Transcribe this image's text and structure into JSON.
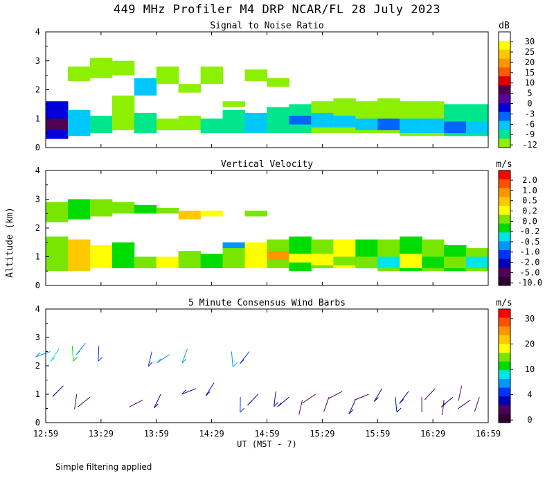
{
  "title": "449 MHz Profiler M4 DRP NCAR/FL 28 July 2023",
  "footnote": "Simple filtering applied",
  "chart_data": [
    {
      "id": "snr",
      "type": "heatmap",
      "title": "Signal to Noise Ratio",
      "ylabel": "Altitude (km)",
      "ylim": [
        0,
        4
      ],
      "y_ticks": [
        "0",
        "1",
        "2",
        "3",
        "4"
      ],
      "colorbar_unit": "dB",
      "colorbar_labels": [
        "30",
        "25",
        "20",
        "15",
        "10",
        "5",
        "0",
        "-3",
        "-6",
        "-9",
        "-12"
      ],
      "colorbar_colors": [
        "#ffffff",
        "#ffff00",
        "#ffc800",
        "#ff9600",
        "#ff5a00",
        "#dc0000",
        "#500050",
        "#5a0096",
        "#0000dc",
        "#0064ff",
        "#00c8ff",
        "#00e68c",
        "#8cf000"
      ],
      "cells": [
        {
          "t": 0.0,
          "y0": 0.3,
          "y1": 1.6,
          "c": 8
        },
        {
          "t": 0.0,
          "y0": 0.6,
          "y1": 1.0,
          "c": 6
        },
        {
          "t": 0.05,
          "y0": 0.4,
          "y1": 1.3,
          "c": 10
        },
        {
          "t": 0.05,
          "y0": 2.3,
          "y1": 2.8,
          "c": 12
        },
        {
          "t": 0.1,
          "y0": 0.5,
          "y1": 1.1,
          "c": 11
        },
        {
          "t": 0.1,
          "y0": 2.4,
          "y1": 3.1,
          "c": 12
        },
        {
          "t": 0.15,
          "y0": 0.6,
          "y1": 1.8,
          "c": 12
        },
        {
          "t": 0.15,
          "y0": 2.5,
          "y1": 3.0,
          "c": 12
        },
        {
          "t": 0.2,
          "y0": 0.5,
          "y1": 1.2,
          "c": 11
        },
        {
          "t": 0.2,
          "y0": 1.8,
          "y1": 2.4,
          "c": 10
        },
        {
          "t": 0.25,
          "y0": 0.6,
          "y1": 1.0,
          "c": 12
        },
        {
          "t": 0.25,
          "y0": 2.2,
          "y1": 2.8,
          "c": 12
        },
        {
          "t": 0.3,
          "y0": 0.6,
          "y1": 1.1,
          "c": 12
        },
        {
          "t": 0.3,
          "y0": 1.9,
          "y1": 2.2,
          "c": 12
        },
        {
          "t": 0.35,
          "y0": 0.5,
          "y1": 1.0,
          "c": 11
        },
        {
          "t": 0.35,
          "y0": 2.2,
          "y1": 2.8,
          "c": 12
        },
        {
          "t": 0.4,
          "y0": 0.5,
          "y1": 1.3,
          "c": 11
        },
        {
          "t": 0.4,
          "y0": 1.4,
          "y1": 1.6,
          "c": 12
        },
        {
          "t": 0.45,
          "y0": 0.5,
          "y1": 1.2,
          "c": 10
        },
        {
          "t": 0.45,
          "y0": 2.3,
          "y1": 2.7,
          "c": 12
        },
        {
          "t": 0.5,
          "y0": 0.5,
          "y1": 1.4,
          "c": 11
        },
        {
          "t": 0.5,
          "y0": 2.1,
          "y1": 2.4,
          "c": 12
        },
        {
          "t": 0.55,
          "y0": 0.5,
          "y1": 1.5,
          "c": 11
        },
        {
          "t": 0.55,
          "y0": 0.8,
          "y1": 1.1,
          "c": 9
        },
        {
          "t": 0.6,
          "y0": 0.5,
          "y1": 1.6,
          "c": 12
        },
        {
          "t": 0.6,
          "y0": 0.7,
          "y1": 1.2,
          "c": 10
        },
        {
          "t": 0.65,
          "y0": 0.5,
          "y1": 1.7,
          "c": 12
        },
        {
          "t": 0.65,
          "y0": 0.7,
          "y1": 1.1,
          "c": 10
        },
        {
          "t": 0.7,
          "y0": 0.5,
          "y1": 1.6,
          "c": 12
        },
        {
          "t": 0.7,
          "y0": 0.6,
          "y1": 1.0,
          "c": 10
        },
        {
          "t": 0.75,
          "y0": 0.5,
          "y1": 1.7,
          "c": 12
        },
        {
          "t": 0.75,
          "y0": 0.6,
          "y1": 1.0,
          "c": 9
        },
        {
          "t": 0.8,
          "y0": 0.4,
          "y1": 1.6,
          "c": 12
        },
        {
          "t": 0.8,
          "y0": 0.5,
          "y1": 1.0,
          "c": 10
        },
        {
          "t": 0.85,
          "y0": 0.4,
          "y1": 1.6,
          "c": 12
        },
        {
          "t": 0.85,
          "y0": 0.5,
          "y1": 1.0,
          "c": 10
        },
        {
          "t": 0.9,
          "y0": 0.4,
          "y1": 1.5,
          "c": 11
        },
        {
          "t": 0.9,
          "y0": 0.5,
          "y1": 0.9,
          "c": 9
        },
        {
          "t": 0.95,
          "y0": 0.4,
          "y1": 1.5,
          "c": 11
        },
        {
          "t": 0.95,
          "y0": 0.5,
          "y1": 0.9,
          "c": 10
        }
      ]
    },
    {
      "id": "vv",
      "type": "heatmap",
      "title": "Vertical Velocity",
      "ylabel": "Altitude (km)",
      "ylim": [
        0,
        4
      ],
      "y_ticks": [
        "0",
        "1",
        "2",
        "3",
        "4"
      ],
      "colorbar_unit": "m/s",
      "colorbar_labels": [
        "2.0",
        "1.0",
        "0.5",
        "0.2",
        "0.0",
        "-0.2",
        "-0.5",
        "-1.0",
        "-2.0",
        "-5.0",
        "-10.0"
      ],
      "colorbar_colors": [
        "#ff0000",
        "#ff5000",
        "#ff9600",
        "#ffc800",
        "#ffff00",
        "#78e600",
        "#00dc00",
        "#00e6e6",
        "#0096ff",
        "#0032ff",
        "#0000b4",
        "#50005a",
        "#300030"
      ],
      "cells": [
        {
          "t": 0.0,
          "y0": 0.5,
          "y1": 1.7,
          "c": 5
        },
        {
          "t": 0.0,
          "y0": 2.2,
          "y1": 2.9,
          "c": 5
        },
        {
          "t": 0.05,
          "y0": 0.5,
          "y1": 1.6,
          "c": 3
        },
        {
          "t": 0.05,
          "y0": 2.3,
          "y1": 3.0,
          "c": 6
        },
        {
          "t": 0.1,
          "y0": 0.6,
          "y1": 1.4,
          "c": 4
        },
        {
          "t": 0.1,
          "y0": 2.4,
          "y1": 3.0,
          "c": 5
        },
        {
          "t": 0.15,
          "y0": 0.6,
          "y1": 1.5,
          "c": 6
        },
        {
          "t": 0.15,
          "y0": 2.5,
          "y1": 2.9,
          "c": 5
        },
        {
          "t": 0.2,
          "y0": 0.6,
          "y1": 1.0,
          "c": 5
        },
        {
          "t": 0.2,
          "y0": 2.5,
          "y1": 2.8,
          "c": 6
        },
        {
          "t": 0.25,
          "y0": 0.6,
          "y1": 1.0,
          "c": 4
        },
        {
          "t": 0.25,
          "y0": 2.5,
          "y1": 2.7,
          "c": 5
        },
        {
          "t": 0.3,
          "y0": 0.6,
          "y1": 1.2,
          "c": 5
        },
        {
          "t": 0.3,
          "y0": 2.3,
          "y1": 2.6,
          "c": 3
        },
        {
          "t": 0.35,
          "y0": 0.6,
          "y1": 1.1,
          "c": 6
        },
        {
          "t": 0.35,
          "y0": 2.4,
          "y1": 2.6,
          "c": 4
        },
        {
          "t": 0.4,
          "y0": 0.6,
          "y1": 1.4,
          "c": 5
        },
        {
          "t": 0.4,
          "y0": 1.3,
          "y1": 1.5,
          "c": 8
        },
        {
          "t": 0.45,
          "y0": 0.6,
          "y1": 1.5,
          "c": 4
        },
        {
          "t": 0.45,
          "y0": 2.4,
          "y1": 2.6,
          "c": 5
        },
        {
          "t": 0.5,
          "y0": 0.6,
          "y1": 1.6,
          "c": 5
        },
        {
          "t": 0.5,
          "y0": 0.9,
          "y1": 1.2,
          "c": 2
        },
        {
          "t": 0.55,
          "y0": 0.5,
          "y1": 1.7,
          "c": 6
        },
        {
          "t": 0.55,
          "y0": 0.8,
          "y1": 1.1,
          "c": 4
        },
        {
          "t": 0.6,
          "y0": 0.6,
          "y1": 1.6,
          "c": 5
        },
        {
          "t": 0.6,
          "y0": 0.7,
          "y1": 1.1,
          "c": 4
        },
        {
          "t": 0.65,
          "y0": 0.6,
          "y1": 1.6,
          "c": 4
        },
        {
          "t": 0.65,
          "y0": 0.7,
          "y1": 1.0,
          "c": 5
        },
        {
          "t": 0.7,
          "y0": 0.6,
          "y1": 1.6,
          "c": 6
        },
        {
          "t": 0.7,
          "y0": 0.6,
          "y1": 1.0,
          "c": 5
        },
        {
          "t": 0.75,
          "y0": 0.5,
          "y1": 1.6,
          "c": 5
        },
        {
          "t": 0.75,
          "y0": 0.6,
          "y1": 1.0,
          "c": 7
        },
        {
          "t": 0.8,
          "y0": 0.5,
          "y1": 1.7,
          "c": 6
        },
        {
          "t": 0.8,
          "y0": 0.6,
          "y1": 1.1,
          "c": 4
        },
        {
          "t": 0.85,
          "y0": 0.5,
          "y1": 1.6,
          "c": 5
        },
        {
          "t": 0.85,
          "y0": 0.6,
          "y1": 1.0,
          "c": 6
        },
        {
          "t": 0.9,
          "y0": 0.5,
          "y1": 1.4,
          "c": 6
        },
        {
          "t": 0.9,
          "y0": 0.6,
          "y1": 1.0,
          "c": 5
        },
        {
          "t": 0.95,
          "y0": 0.5,
          "y1": 1.3,
          "c": 5
        },
        {
          "t": 0.95,
          "y0": 0.6,
          "y1": 1.0,
          "c": 7
        }
      ]
    },
    {
      "id": "wind",
      "type": "scatter",
      "title": "5 Minute Consensus Wind Barbs",
      "ylabel": "Altitude (km)",
      "ylim": [
        0,
        4
      ],
      "y_ticks": [
        "0",
        "1",
        "2",
        "3",
        "4"
      ],
      "colorbar_unit": "m/s",
      "colorbar_labels": [
        "30",
        "20",
        "10",
        "4",
        "0"
      ],
      "colorbar_colors": [
        "#ff0000",
        "#ff5000",
        "#ff9600",
        "#ffc800",
        "#ffff00",
        "#78e600",
        "#00dc00",
        "#00e6e6",
        "#0096ff",
        "#0032ff",
        "#0000b4",
        "#50005a",
        "#300030"
      ],
      "barbs": [
        {
          "t": 0.01,
          "alt": 2.5,
          "speed": 10
        },
        {
          "t": 0.03,
          "alt": 2.6,
          "speed": 12
        },
        {
          "t": 0.06,
          "alt": 2.7,
          "speed": 14
        },
        {
          "t": 0.09,
          "alt": 2.8,
          "speed": 10
        },
        {
          "t": 0.12,
          "alt": 2.7,
          "speed": 8
        },
        {
          "t": 0.04,
          "alt": 1.3,
          "speed": 6
        },
        {
          "t": 0.07,
          "alt": 1.0,
          "speed": 3
        },
        {
          "t": 0.1,
          "alt": 0.9,
          "speed": 2
        },
        {
          "t": 0.24,
          "alt": 2.5,
          "speed": 8
        },
        {
          "t": 0.28,
          "alt": 2.4,
          "speed": 11
        },
        {
          "t": 0.32,
          "alt": 2.6,
          "speed": 9
        },
        {
          "t": 0.22,
          "alt": 0.8,
          "speed": 3
        },
        {
          "t": 0.26,
          "alt": 1.0,
          "speed": 4
        },
        {
          "t": 0.34,
          "alt": 1.2,
          "speed": 6
        },
        {
          "t": 0.38,
          "alt": 1.4,
          "speed": 5
        },
        {
          "t": 0.42,
          "alt": 2.5,
          "speed": 9
        },
        {
          "t": 0.46,
          "alt": 2.5,
          "speed": 8
        },
        {
          "t": 0.44,
          "alt": 0.9,
          "speed": 8
        },
        {
          "t": 0.48,
          "alt": 1.0,
          "speed": 5
        },
        {
          "t": 0.52,
          "alt": 1.1,
          "speed": 6
        },
        {
          "t": 0.55,
          "alt": 0.9,
          "speed": 4
        },
        {
          "t": 0.58,
          "alt": 0.8,
          "speed": 2
        },
        {
          "t": 0.61,
          "alt": 1.0,
          "speed": 2
        },
        {
          "t": 0.64,
          "alt": 0.9,
          "speed": 3
        },
        {
          "t": 0.67,
          "alt": 1.1,
          "speed": 2
        },
        {
          "t": 0.7,
          "alt": 0.8,
          "speed": 4
        },
        {
          "t": 0.73,
          "alt": 1.0,
          "speed": 3
        },
        {
          "t": 0.76,
          "alt": 1.2,
          "speed": 5
        },
        {
          "t": 0.79,
          "alt": 0.9,
          "speed": 4
        },
        {
          "t": 0.82,
          "alt": 1.1,
          "speed": 6
        },
        {
          "t": 0.85,
          "alt": 0.9,
          "speed": 3
        },
        {
          "t": 0.88,
          "alt": 1.2,
          "speed": 2
        },
        {
          "t": 0.9,
          "alt": 0.8,
          "speed": 2
        },
        {
          "t": 0.92,
          "alt": 0.9,
          "speed": 6
        },
        {
          "t": 0.94,
          "alt": 1.3,
          "speed": 3
        },
        {
          "t": 0.96,
          "alt": 0.8,
          "speed": 2
        },
        {
          "t": 0.98,
          "alt": 0.9,
          "speed": 3
        }
      ]
    }
  ],
  "x_axis": {
    "label": "UT  (MST - 7)",
    "ticks": [
      "12:59",
      "13:29",
      "13:59",
      "14:29",
      "14:59",
      "15:29",
      "15:59",
      "16:29",
      "16:59"
    ]
  }
}
